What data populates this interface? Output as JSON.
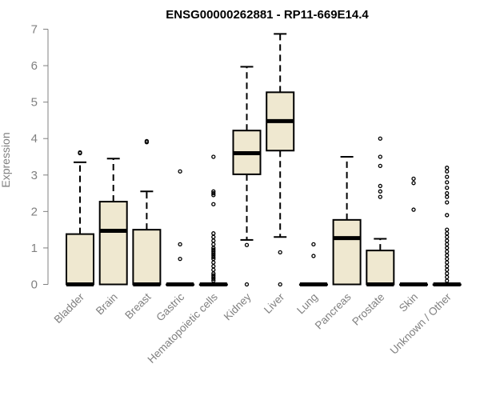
{
  "chart_data": {
    "type": "box",
    "title": "ENSG00000262881 - RP11-669E14.4",
    "xlabel": "",
    "ylabel": "Expression",
    "ylim": [
      0,
      7
    ],
    "yticks": [
      0,
      1,
      2,
      3,
      4,
      5,
      6,
      7
    ],
    "box_fill": "#efe8d0",
    "categories": [
      "Bladder",
      "Brain",
      "Breast",
      "Gastric",
      "Hematopoietic cells",
      "Kidney",
      "Liver",
      "Lung",
      "Pancreas",
      "Prostate",
      "Skin",
      "Unknown / Other"
    ],
    "boxes": [
      {
        "name": "Bladder",
        "q1": 0,
        "median": 0,
        "q3": 1.38,
        "whisker_low": 0,
        "whisker_high": 3.35,
        "outliers": [
          3.6,
          3.62
        ]
      },
      {
        "name": "Brain",
        "q1": 0,
        "median": 1.47,
        "q3": 2.27,
        "whisker_low": 0,
        "whisker_high": 3.45,
        "outliers": []
      },
      {
        "name": "Breast",
        "q1": 0,
        "median": 0,
        "q3": 1.5,
        "whisker_low": 0,
        "whisker_high": 2.55,
        "outliers": [
          3.9,
          3.93
        ]
      },
      {
        "name": "Gastric",
        "q1": 0,
        "median": 0,
        "q3": 0,
        "whisker_low": 0,
        "whisker_high": 0,
        "outliers": [
          3.1,
          1.1,
          0.7
        ]
      },
      {
        "name": "Hematopoietic cells",
        "q1": 0,
        "median": 0,
        "q3": 0,
        "whisker_low": 0,
        "whisker_high": 0,
        "outliers": [
          3.5,
          2.55,
          2.5,
          2.45,
          2.2,
          1.4,
          1.3,
          1.2,
          1.1,
          1.0,
          0.95,
          0.9,
          0.85,
          0.8,
          0.75,
          0.7,
          0.6,
          0.5,
          0.4,
          0.3,
          0.25,
          0.2,
          0.15,
          0.1
        ]
      },
      {
        "name": "Kidney",
        "q1": 3.02,
        "median": 3.6,
        "q3": 4.22,
        "whisker_low": 1.22,
        "whisker_high": 5.97,
        "outliers": [
          1.08,
          0
        ]
      },
      {
        "name": "Liver",
        "q1": 3.67,
        "median": 4.48,
        "q3": 5.27,
        "whisker_low": 1.3,
        "whisker_high": 6.87,
        "outliers": [
          0.88,
          0
        ]
      },
      {
        "name": "Lung",
        "q1": 0,
        "median": 0,
        "q3": 0,
        "whisker_low": 0,
        "whisker_high": 0,
        "outliers": [
          1.1,
          0.78
        ]
      },
      {
        "name": "Pancreas",
        "q1": 0,
        "median": 1.27,
        "q3": 1.77,
        "whisker_low": 0,
        "whisker_high": 3.5,
        "outliers": []
      },
      {
        "name": "Prostate",
        "q1": 0,
        "median": 0,
        "q3": 0.93,
        "whisker_low": 0,
        "whisker_high": 1.25,
        "outliers": [
          4.0,
          3.5,
          3.25,
          2.7,
          2.55,
          2.4
        ]
      },
      {
        "name": "Skin",
        "q1": 0,
        "median": 0,
        "q3": 0,
        "whisker_low": 0,
        "whisker_high": 0,
        "outliers": [
          2.9,
          2.78,
          2.05
        ]
      },
      {
        "name": "Unknown / Other",
        "q1": 0,
        "median": 0,
        "q3": 0,
        "whisker_low": 0,
        "whisker_high": 0,
        "outliers": [
          3.2,
          3.1,
          2.95,
          2.8,
          2.65,
          2.5,
          2.4,
          2.25,
          1.9,
          1.5,
          1.4,
          1.3,
          1.2,
          1.1,
          1.0,
          0.9,
          0.8,
          0.7,
          0.6,
          0.5,
          0.4,
          0.3,
          0.2,
          0.1
        ]
      }
    ]
  }
}
